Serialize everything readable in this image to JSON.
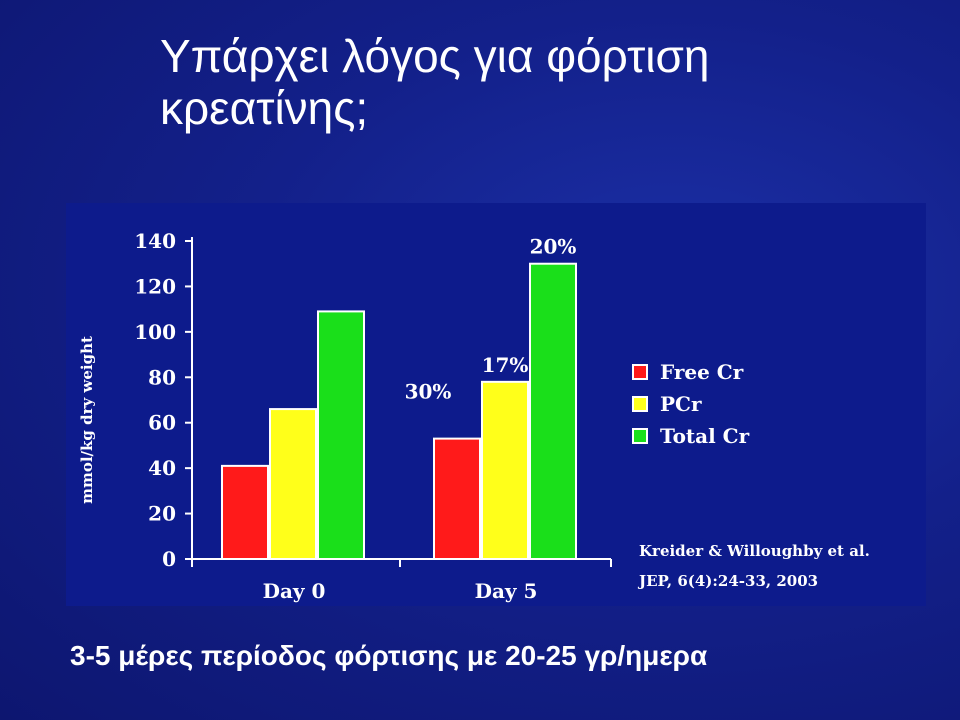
{
  "slide": {
    "title_line1": "Υπάρχει λόγος για φόρτιση",
    "title_line2": "κρεατίνης;",
    "caption": "3-5 μέρες περίοδος φόρτισης με 20-25 γρ/ημερα"
  },
  "citation": {
    "line1": "Kreider & Willoughby et al.",
    "line2": "JEP, 6(4):24-33, 2003"
  },
  "chart_data": {
    "type": "bar",
    "title": "",
    "xlabel": "",
    "ylabel": "mmol/kg dry weight",
    "ylim": [
      0,
      140
    ],
    "yticks": [
      0,
      20,
      40,
      60,
      80,
      100,
      120,
      140
    ],
    "categories": [
      "Day 0",
      "Day 5"
    ],
    "series": [
      {
        "name": "Free Cr",
        "color": "#ff1a1a",
        "values": [
          41,
          53
        ]
      },
      {
        "name": "PCr",
        "color": "#ffff1a",
        "values": [
          66,
          78
        ]
      },
      {
        "name": "Total Cr",
        "color": "#1adf1a",
        "values": [
          109,
          130
        ]
      }
    ],
    "annotations": [
      {
        "category": "Day 5",
        "series": "Free Cr",
        "text": "30%"
      },
      {
        "category": "Day 5",
        "series": "PCr",
        "text": "17%"
      },
      {
        "category": "Day 5",
        "series": "Total Cr",
        "text": "20%"
      }
    ],
    "legend_position": "right",
    "grid": false
  }
}
